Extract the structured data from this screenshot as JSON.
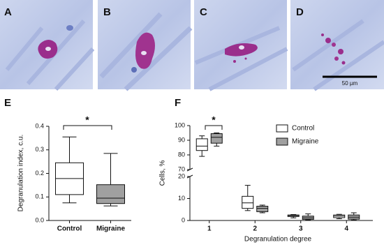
{
  "images": {
    "labels": [
      "A",
      "B",
      "C",
      "D"
    ],
    "scale_bar": "50 µm"
  },
  "chart_data": [
    {
      "type": "box",
      "panel_label": "E",
      "ylabel": "Degranulation index, c.u.",
      "categories": [
        "Control",
        "Migraine"
      ],
      "values": [
        {
          "min": 0.075,
          "q1": 0.11,
          "median": 0.178,
          "q3": 0.245,
          "max": 0.355
        },
        {
          "min": 0.062,
          "q1": 0.072,
          "median": 0.095,
          "q3": 0.152,
          "max": 0.285
        }
      ],
      "colors": [
        "#ffffff",
        "#a0a0a0"
      ],
      "ylim": [
        0,
        0.4
      ],
      "yticks": [
        {
          "value": 0,
          "label": "0.0"
        },
        0.1,
        0.2,
        0.3,
        0.4
      ],
      "annotations": [
        {
          "text": "*"
        }
      ]
    },
    {
      "type": "box",
      "panel_label": "F",
      "ylabel": "Cells, %",
      "xlabel": "Degranulation degree",
      "categories": [
        "1",
        "2",
        "3",
        "4"
      ],
      "series": [
        {
          "name": "Control",
          "color": "#ffffff",
          "values": [
            {
              "min": 79,
              "q1": 83,
              "median": 86,
              "q3": 91,
              "max": 93
            },
            {
              "min": 4.5,
              "q1": 5.5,
              "median": 8,
              "q3": 11,
              "max": 16
            },
            {
              "min": 1.2,
              "q1": 1.8,
              "median": 2.2,
              "q3": 2.5,
              "max": 2.7
            },
            {
              "min": 0.8,
              "q1": 1.3,
              "median": 2,
              "q3": 2.5,
              "max": 2.8
            }
          ]
        },
        {
          "name": "Migraine",
          "color": "#a0a0a0",
          "values": [
            {
              "min": 86,
              "q1": 88,
              "median": 92,
              "q3": 94.5,
              "max": 95
            },
            {
              "min": 3.5,
              "q1": 4,
              "median": 5.5,
              "q3": 6.5,
              "max": 7
            },
            {
              "min": 0.3,
              "q1": 0.5,
              "median": 1.2,
              "q3": 2,
              "max": 3
            },
            {
              "min": 0.2,
              "q1": 0.6,
              "median": 1.5,
              "q3": 2.5,
              "max": 3.5
            }
          ]
        }
      ],
      "ylim": [
        0,
        100
      ],
      "ybreak": [
        20,
        70
      ],
      "yticks": [
        0,
        10,
        20,
        70,
        80,
        90,
        100
      ],
      "annotations": [
        {
          "text": "*"
        }
      ]
    }
  ]
}
